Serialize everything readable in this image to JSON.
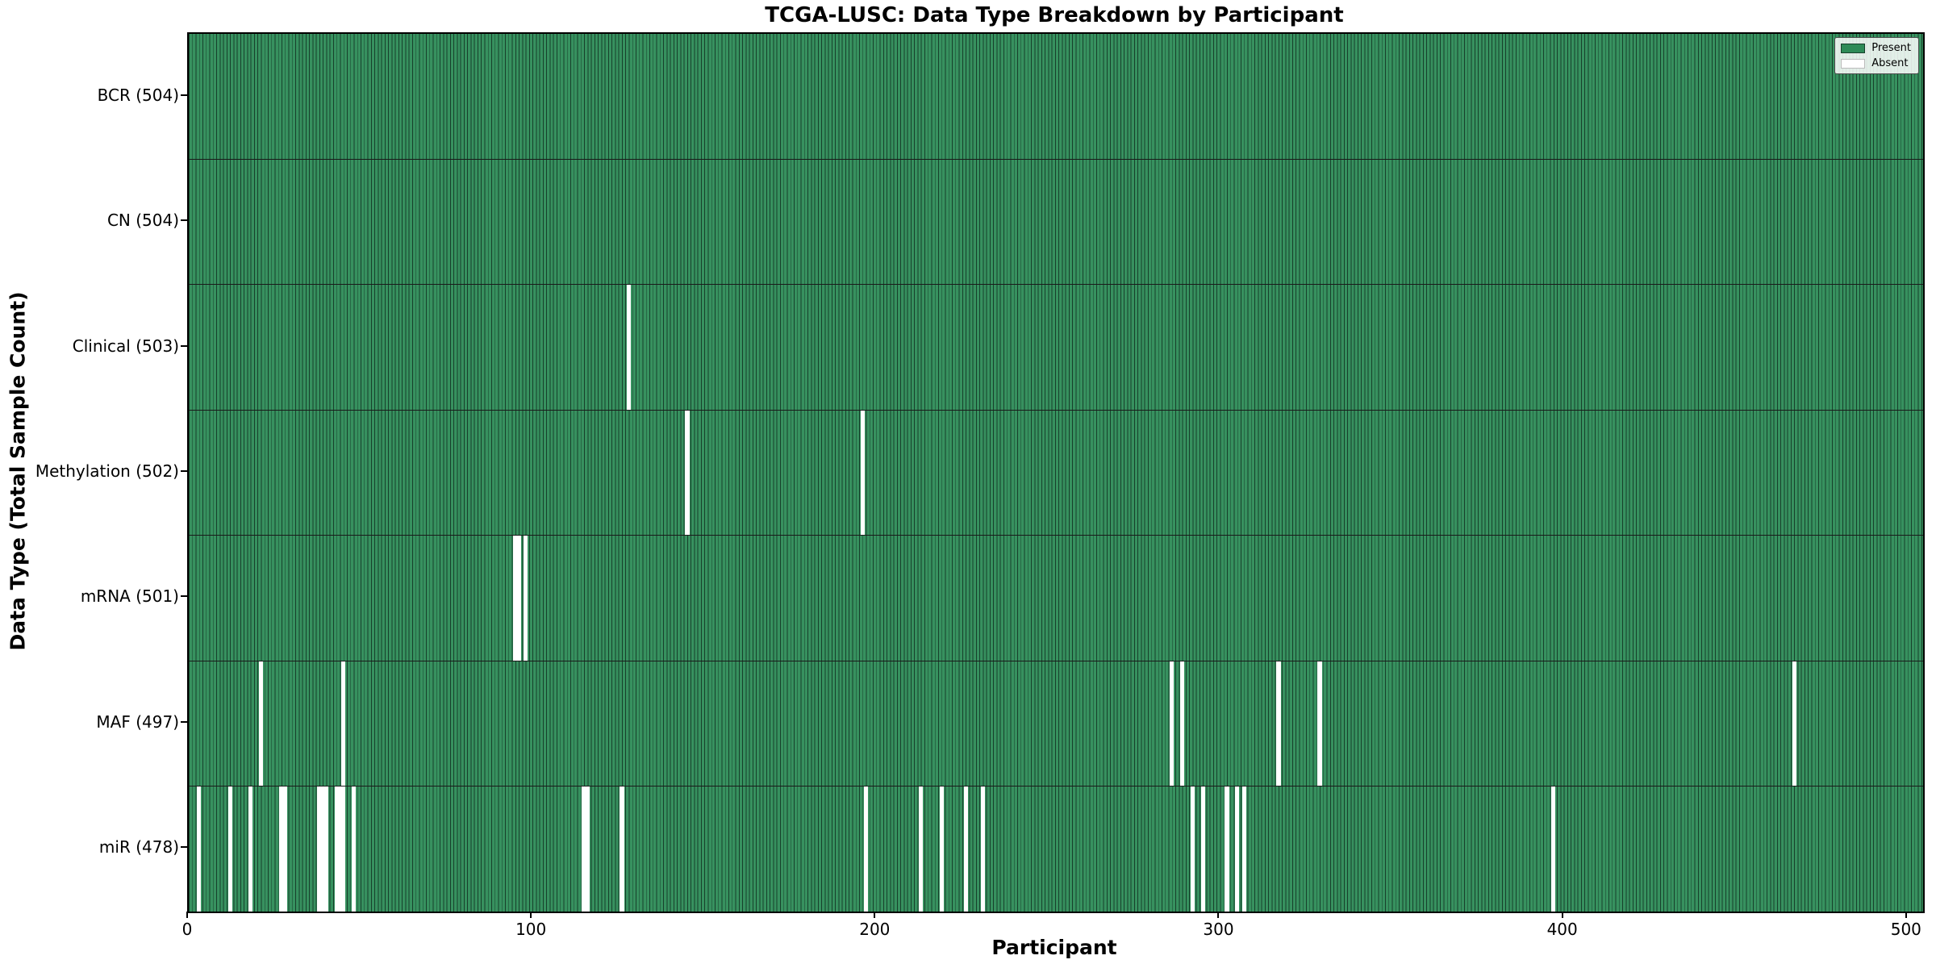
{
  "chart_data": {
    "type": "heatmap",
    "title": "TCGA-LUSC: Data Type Breakdown by Participant",
    "xlabel": "Participant",
    "ylabel": "Data Type (Total Sample Count)",
    "x_ticks": [
      0,
      100,
      200,
      300,
      400,
      500
    ],
    "xlim": [
      0,
      504.5
    ],
    "n_participants": 504,
    "grid": false,
    "colors": {
      "present_fill": "#37915f",
      "present_swatch": "#2e8b57",
      "bar_edge": "#17402b",
      "absent": "#ffffff",
      "row_divider": "#1a1a1a",
      "spine": "#000000"
    },
    "legend": {
      "position": "upper right",
      "entries": [
        {
          "label": "Present",
          "color": "#2e8b57"
        },
        {
          "label": "Absent",
          "color": "#ffffff"
        }
      ]
    },
    "rows": [
      {
        "data_type": "BCR",
        "label": "BCR (504)",
        "total": 504,
        "absent_participants": []
      },
      {
        "data_type": "CN",
        "label": "CN (504)",
        "total": 504,
        "absent_participants": []
      },
      {
        "data_type": "Clinical",
        "label": "Clinical (503)",
        "total": 503,
        "absent_participants": [
          128
        ]
      },
      {
        "data_type": "Methylation",
        "label": "Methylation (502)",
        "total": 502,
        "absent_participants": [
          145,
          196
        ]
      },
      {
        "data_type": "mRNA",
        "label": "mRNA (501)",
        "total": 501,
        "absent_participants": [
          95,
          96,
          98
        ]
      },
      {
        "data_type": "MAF",
        "label": "MAF (497)",
        "total": 497,
        "absent_participants": [
          21,
          45,
          286,
          289,
          317,
          329,
          467
        ]
      },
      {
        "data_type": "miR",
        "label": "miR (478)",
        "total": 478,
        "absent_participants": [
          3,
          12,
          18,
          27,
          28,
          38,
          39,
          40,
          43,
          44,
          45,
          48,
          115,
          116,
          126,
          197,
          213,
          219,
          226,
          231,
          292,
          295,
          302,
          305,
          307,
          397
        ]
      }
    ]
  }
}
